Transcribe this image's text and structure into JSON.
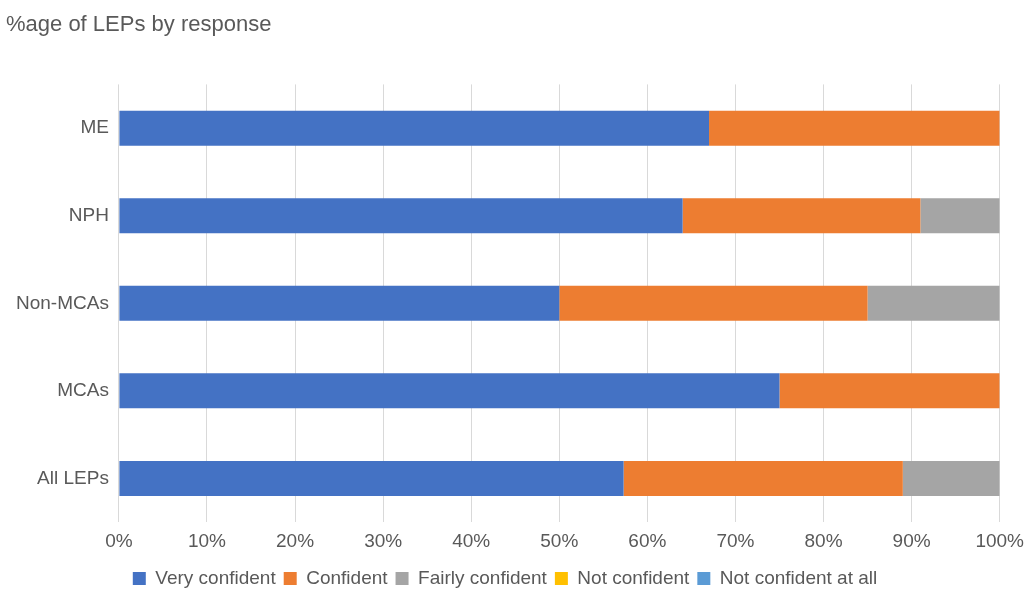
{
  "chart_data": {
    "type": "bar",
    "orientation": "horizontal",
    "stacked": true,
    "title": "%age of LEPs by response",
    "categories": [
      "ME",
      "NPH",
      "Non-MCAs",
      "MCAs",
      "All LEPs"
    ],
    "series": [
      {
        "name": "Very confident",
        "color": "#4472c4",
        "values": [
          67,
          64,
          50,
          75,
          57.3
        ]
      },
      {
        "name": "Confident",
        "color": "#ed7d31",
        "values": [
          33,
          27,
          35,
          25,
          31.7
        ]
      },
      {
        "name": "Fairly confident",
        "color": "#a5a5a5",
        "values": [
          0,
          9,
          15,
          0,
          11
        ]
      },
      {
        "name": "Not confident",
        "color": "#ffc000",
        "values": [
          0,
          0,
          0,
          0,
          0
        ]
      },
      {
        "name": "Not confident at all",
        "color": "#5b9bd5",
        "values": [
          0,
          0,
          0,
          0,
          0
        ]
      }
    ],
    "xlim": [
      0,
      100
    ],
    "xticks": [
      {
        "value": 0,
        "label": "0%"
      },
      {
        "value": 10,
        "label": "10%"
      },
      {
        "value": 20,
        "label": "20%"
      },
      {
        "value": 30,
        "label": "30%"
      },
      {
        "value": 40,
        "label": "40%"
      },
      {
        "value": 50,
        "label": "50%"
      },
      {
        "value": 60,
        "label": "60%"
      },
      {
        "value": 70,
        "label": "70%"
      },
      {
        "value": 80,
        "label": "80%"
      },
      {
        "value": 90,
        "label": "90%"
      },
      {
        "value": 100,
        "label": "100%"
      }
    ],
    "grid": "x",
    "legend": "bottom"
  }
}
